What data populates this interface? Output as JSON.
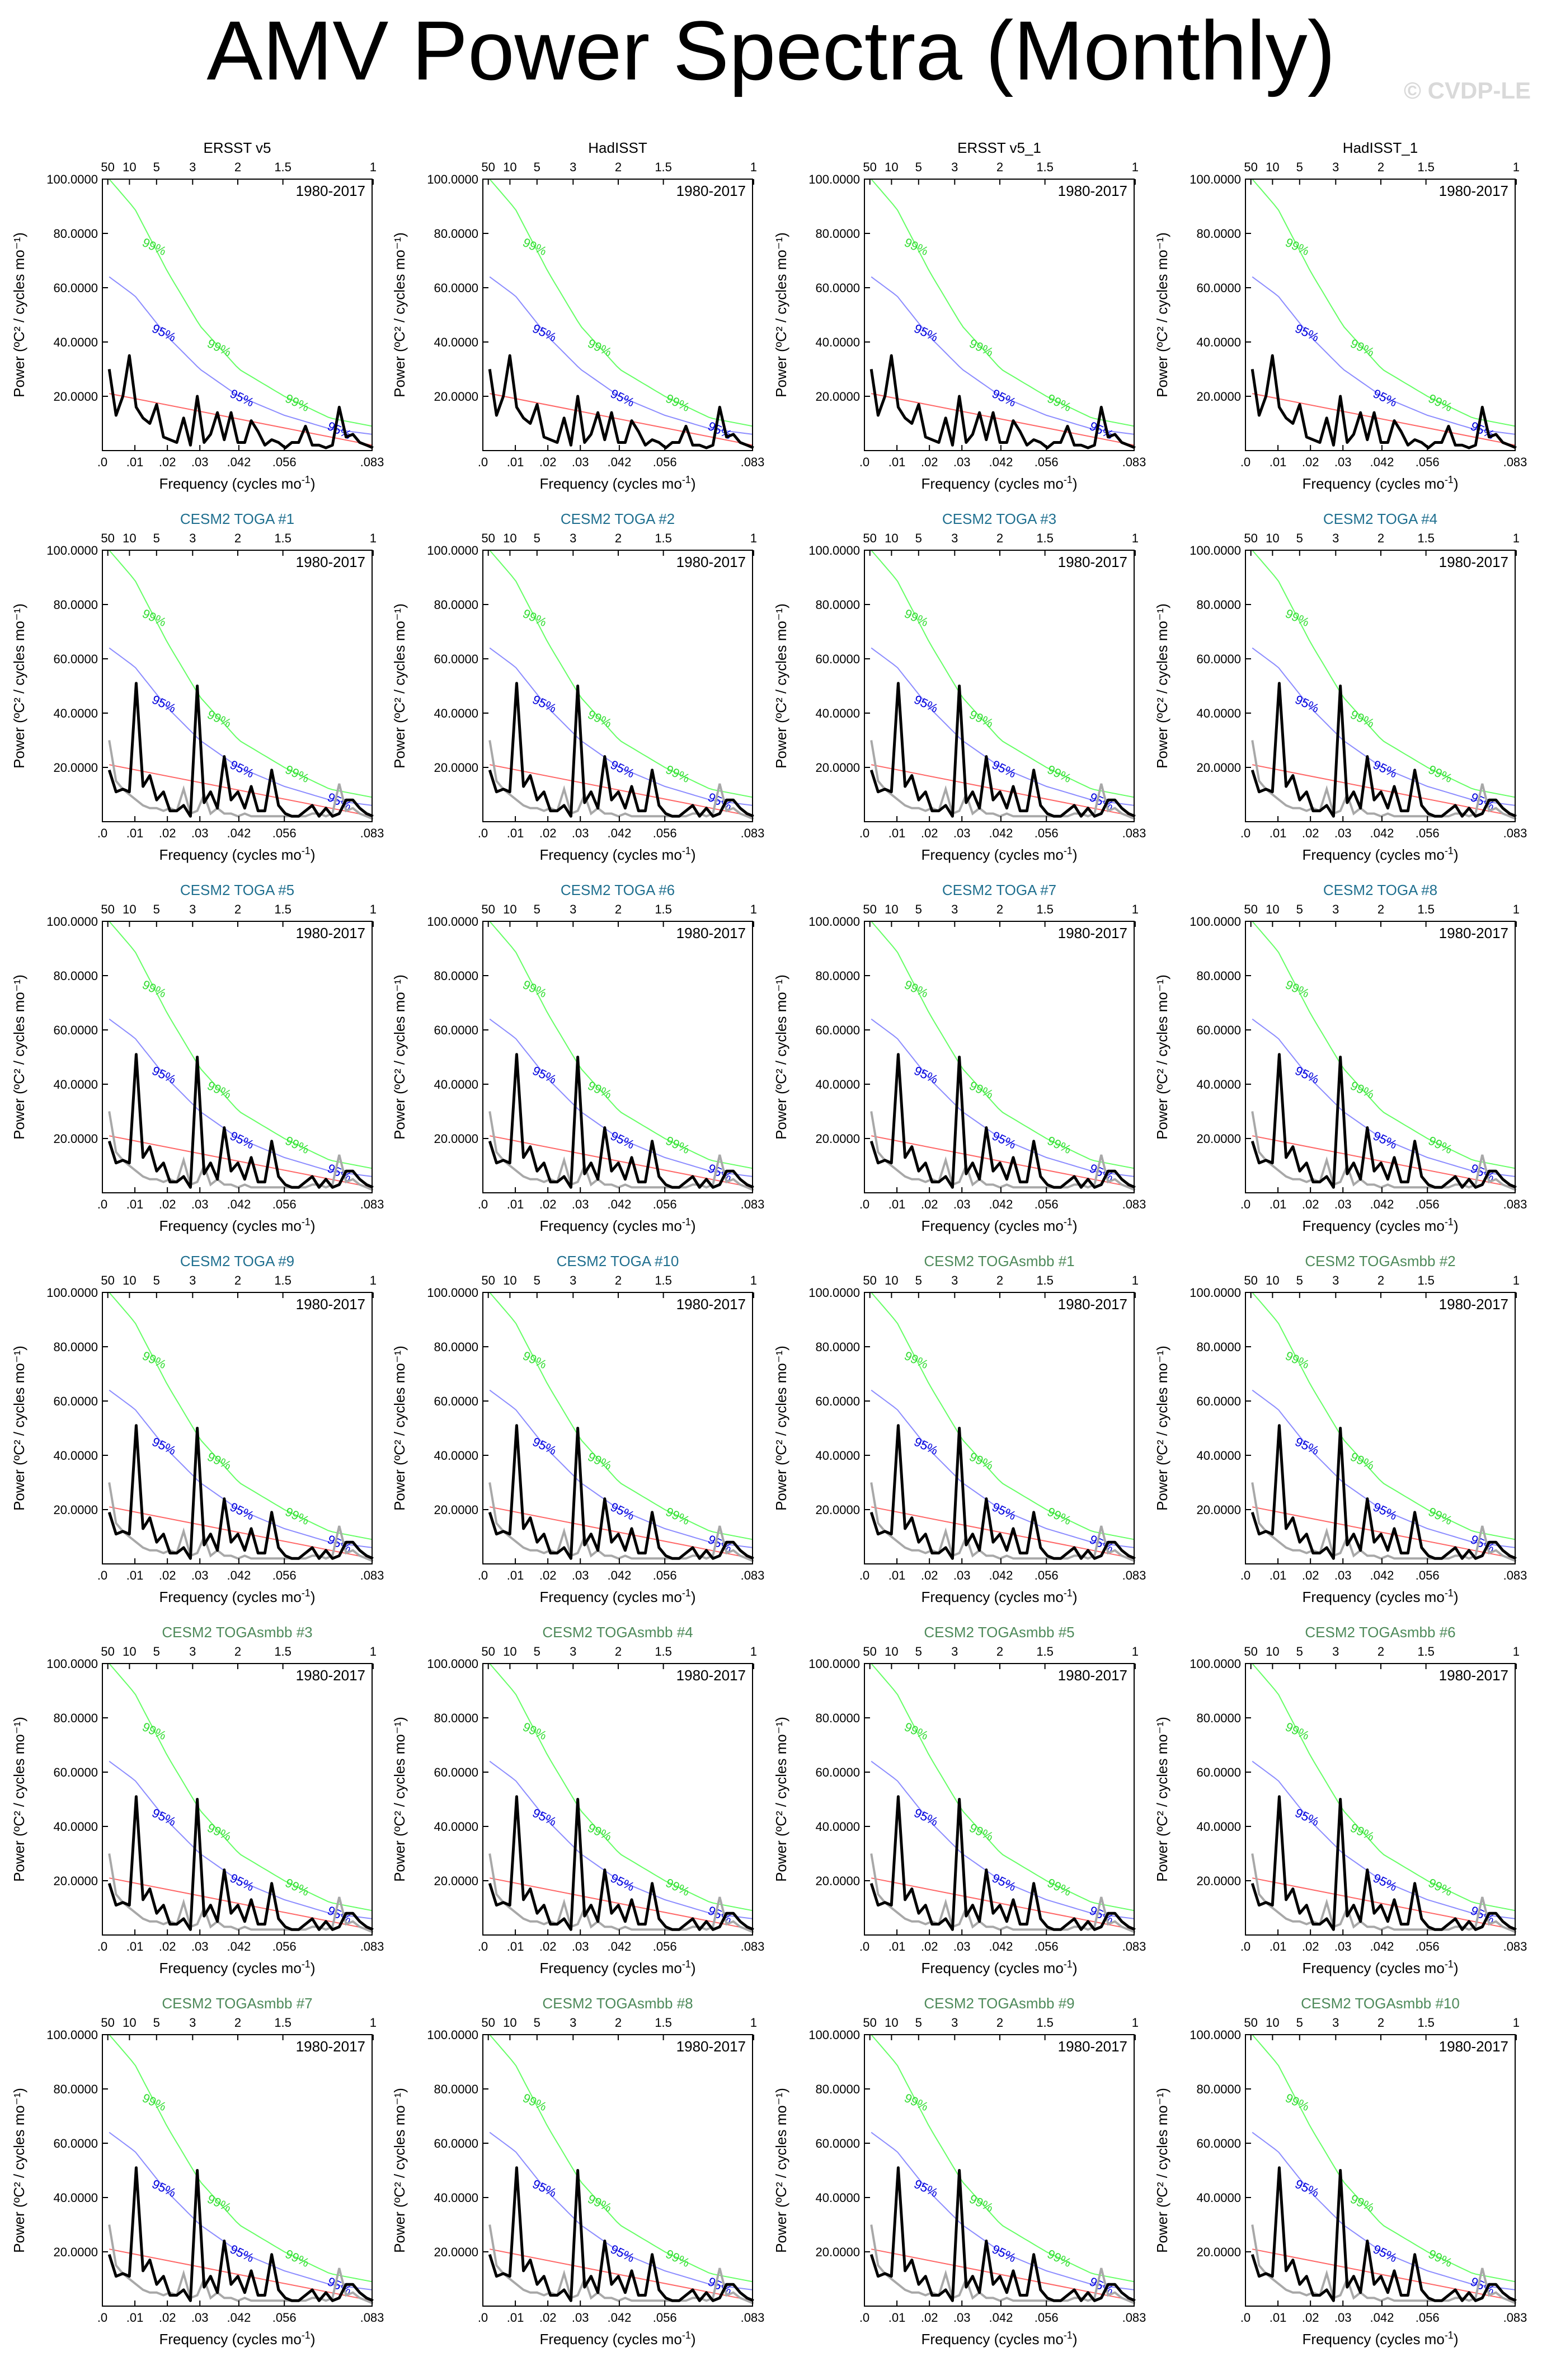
{
  "title": "AMV Power Spectra (Monthly)",
  "watermark": "© CVDP-LE",
  "colors": {
    "spectrum": "#000000",
    "obs_overlay": "#a8a8a8",
    "red_noise": "#ff6666",
    "ci95": "#8c8cff",
    "ci99": "#66ff66",
    "ci95_label": "#0000dd",
    "ci99_label": "#33dd33",
    "title_obs": "#000000",
    "title_toga": "#1f6f8f",
    "title_togasmbb": "#4e8a5a"
  },
  "chart_data": {
    "type": "line",
    "period_label": "1980-2017",
    "xlabel_main": "Frequency (cycles mo",
    "xlabel_exp": "-1",
    "xlabel_close": ")",
    "ylabel": "Power (ºC² / cycles mo⁻¹)",
    "xlim": [
      0,
      0.083
    ],
    "ylim": [
      0,
      100
    ],
    "x_ticks": [
      ".0",
      ".01",
      ".02",
      ".03",
      ".042",
      ".056",
      ".083"
    ],
    "x_tick_values": [
      0,
      0.01,
      0.02,
      0.03,
      0.042,
      0.056,
      0.083
    ],
    "top_ticks": [
      "50",
      "10",
      "5",
      "3",
      "2",
      "1.5",
      "1"
    ],
    "top_tick_periods_years": [
      50,
      10,
      5,
      3,
      2,
      1.5,
      1
    ],
    "y_ticks": [
      "20.0000",
      "40.0000",
      "60.0000",
      "80.0000",
      "100.0000"
    ],
    "y_tick_values": [
      20,
      40,
      60,
      80,
      100
    ],
    "ci_labels": {
      "ci95": "95%",
      "ci99": "99%"
    },
    "frequencies": [
      0.0021,
      0.0042,
      0.0063,
      0.0083,
      0.0104,
      0.0125,
      0.0146,
      0.0167,
      0.0188,
      0.0208,
      0.0229,
      0.025,
      0.0271,
      0.0292,
      0.0313,
      0.0333,
      0.0354,
      0.0375,
      0.0396,
      0.0417,
      0.0438,
      0.0458,
      0.0479,
      0.05,
      0.0521,
      0.0542,
      0.0563,
      0.0583,
      0.0604,
      0.0625,
      0.0646,
      0.0667,
      0.0688,
      0.0708,
      0.0729,
      0.075,
      0.0771,
      0.0792,
      0.0813,
      0.0833
    ],
    "red_noise_endpoints": [
      [
        0.0021,
        21
      ],
      [
        0.083,
        2
      ]
    ],
    "ci95_curve": [
      [
        0.0021,
        64
      ],
      [
        0.01,
        57
      ],
      [
        0.02,
        42
      ],
      [
        0.03,
        30
      ],
      [
        0.042,
        20
      ],
      [
        0.056,
        13
      ],
      [
        0.07,
        8
      ],
      [
        0.083,
        6
      ]
    ],
    "ci99_curve": [
      [
        0.0021,
        100
      ],
      [
        0.01,
        89
      ],
      [
        0.02,
        66
      ],
      [
        0.03,
        46
      ],
      [
        0.042,
        30
      ],
      [
        0.056,
        20
      ],
      [
        0.07,
        12
      ],
      [
        0.083,
        9
      ]
    ],
    "obs_spectrum": [
      30,
      13,
      20,
      35,
      16,
      12,
      10,
      17,
      5,
      4,
      3,
      12,
      2,
      20,
      3,
      6,
      14,
      4,
      14,
      3,
      3,
      11,
      7,
      2,
      4,
      3,
      1,
      3,
      3,
      9,
      2,
      2,
      1,
      2,
      16,
      5,
      6,
      3,
      2,
      1
    ],
    "model_spectrum": [
      19,
      11,
      12,
      11,
      51,
      13,
      17,
      8,
      11,
      4,
      4,
      6,
      2,
      50,
      7,
      11,
      5,
      24,
      8,
      11,
      5,
      13,
      4,
      4,
      19,
      6,
      3,
      2,
      2,
      4,
      6,
      2,
      5,
      2,
      3,
      8,
      8,
      5,
      3,
      2
    ],
    "model_overlay": [
      30,
      15,
      12,
      10,
      8,
      6,
      5,
      5,
      4,
      5,
      4,
      12,
      3,
      4,
      10,
      3,
      5,
      3,
      3,
      2,
      3,
      2,
      2,
      2,
      2,
      2,
      2,
      2,
      2,
      2,
      3,
      3,
      2,
      3,
      14,
      4,
      5,
      3,
      2,
      1
    ],
    "panels": [
      {
        "title": "ERSST v5",
        "group": "obs"
      },
      {
        "title": "HadISST",
        "group": "obs"
      },
      {
        "title": "ERSST v5_1",
        "group": "obs"
      },
      {
        "title": "HadISST_1",
        "group": "obs"
      },
      {
        "title": "CESM2 TOGA #1",
        "group": "toga"
      },
      {
        "title": "CESM2 TOGA #2",
        "group": "toga"
      },
      {
        "title": "CESM2 TOGA #3",
        "group": "toga"
      },
      {
        "title": "CESM2 TOGA #4",
        "group": "toga"
      },
      {
        "title": "CESM2 TOGA #5",
        "group": "toga"
      },
      {
        "title": "CESM2 TOGA #6",
        "group": "toga"
      },
      {
        "title": "CESM2 TOGA #7",
        "group": "toga"
      },
      {
        "title": "CESM2 TOGA #8",
        "group": "toga"
      },
      {
        "title": "CESM2 TOGA #9",
        "group": "toga"
      },
      {
        "title": "CESM2 TOGA #10",
        "group": "toga"
      },
      {
        "title": "CESM2 TOGAsmbb #1",
        "group": "togasmbb"
      },
      {
        "title": "CESM2 TOGAsmbb #2",
        "group": "togasmbb"
      },
      {
        "title": "CESM2 TOGAsmbb #3",
        "group": "togasmbb"
      },
      {
        "title": "CESM2 TOGAsmbb #4",
        "group": "togasmbb"
      },
      {
        "title": "CESM2 TOGAsmbb #5",
        "group": "togasmbb"
      },
      {
        "title": "CESM2 TOGAsmbb #6",
        "group": "togasmbb"
      },
      {
        "title": "CESM2 TOGAsmbb #7",
        "group": "togasmbb"
      },
      {
        "title": "CESM2 TOGAsmbb #8",
        "group": "togasmbb"
      },
      {
        "title": "CESM2 TOGAsmbb #9",
        "group": "togasmbb"
      },
      {
        "title": "CESM2 TOGAsmbb #10",
        "group": "togasmbb"
      }
    ]
  }
}
